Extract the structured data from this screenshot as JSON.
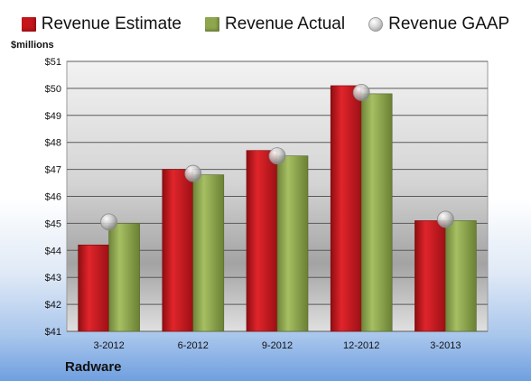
{
  "legend": {
    "estimate": "Revenue Estimate",
    "actual": "Revenue Actual",
    "gaap": "Revenue GAAP"
  },
  "unit_label": "$millions",
  "company": "Radware",
  "colors": {
    "estimate": "#c4161c",
    "actual": "#8ea64e",
    "gaap": "#c0c0c0"
  },
  "chart_data": {
    "type": "bar",
    "categories": [
      "3-2012",
      "6-2012",
      "9-2012",
      "12-2012",
      "3-2013"
    ],
    "series": [
      {
        "name": "Revenue Estimate",
        "values": [
          44.2,
          47.0,
          47.7,
          50.1,
          45.1
        ]
      },
      {
        "name": "Revenue Actual",
        "values": [
          45.0,
          46.8,
          47.5,
          49.8,
          45.1
        ]
      },
      {
        "name": "Revenue GAAP",
        "values": [
          45.05,
          46.85,
          47.5,
          49.85,
          45.15
        ]
      }
    ],
    "ylabel": "$millions",
    "ylim": [
      41,
      51
    ],
    "yticks": [
      "$41",
      "$42",
      "$43",
      "$44",
      "$45",
      "$46",
      "$47",
      "$48",
      "$49",
      "$50",
      "$51"
    ],
    "grid": true,
    "legend": "top"
  }
}
